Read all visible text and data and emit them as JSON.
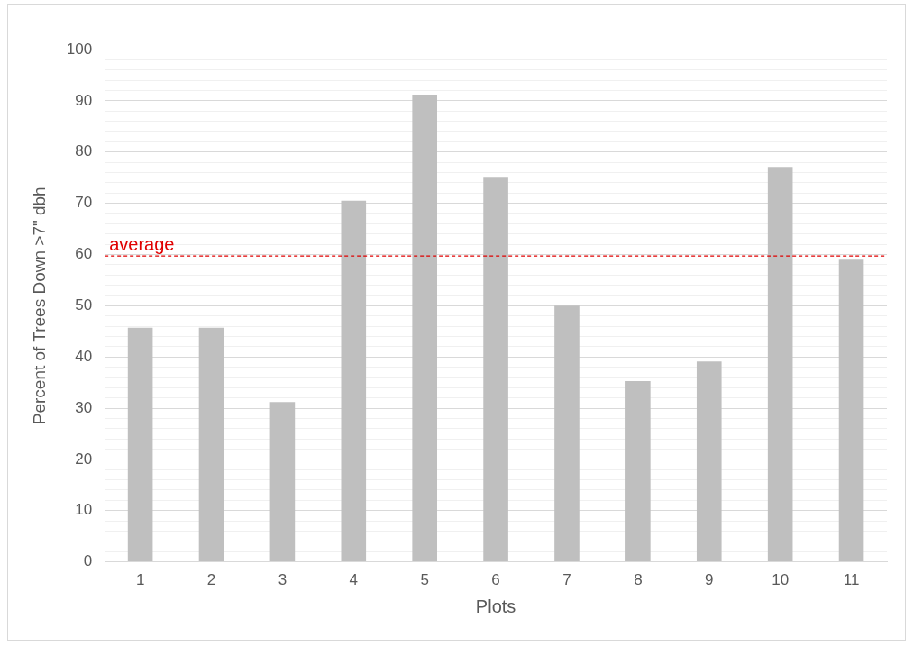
{
  "chart_data": {
    "type": "bar",
    "xlabel": "Plots",
    "ylabel": "Percent of Trees Down >7\" dbh",
    "categories": [
      "1",
      "2",
      "3",
      "4",
      "5",
      "6",
      "7",
      "8",
      "9",
      "10",
      "11"
    ],
    "values": [
      45.7,
      45.7,
      31.2,
      70.5,
      91.2,
      75,
      50,
      35.3,
      39.1,
      77.1,
      59
    ],
    "color": "#bfbfbf",
    "ylim": [
      0,
      100
    ],
    "yticks": [
      0,
      {
        "value": 2,
        "label": null
      },
      {
        "value": 4,
        "label": null
      },
      {
        "value": 6,
        "label": null
      },
      {
        "value": 8,
        "label": null
      },
      10,
      {
        "value": 12,
        "label": null
      },
      {
        "value": 14,
        "label": null
      },
      {
        "value": 16,
        "label": null
      },
      {
        "value": 18,
        "label": null
      },
      20,
      {
        "value": 22,
        "label": null
      },
      {
        "value": 24,
        "label": null
      },
      {
        "value": 26,
        "label": null
      },
      {
        "value": 28,
        "label": null
      },
      30,
      {
        "value": 32,
        "label": null
      },
      {
        "value": 34,
        "label": null
      },
      {
        "value": 36,
        "label": null
      },
      {
        "value": 38,
        "label": null
      },
      40,
      {
        "value": 42,
        "label": null
      },
      {
        "value": 44,
        "label": null
      },
      {
        "value": 46,
        "label": null
      },
      {
        "value": 48,
        "label": null
      },
      50,
      {
        "value": 52,
        "label": null
      },
      {
        "value": 54,
        "label": null
      },
      {
        "value": 56,
        "label": null
      },
      {
        "value": 58,
        "label": null
      },
      60,
      {
        "value": 62,
        "label": null
      },
      {
        "value": 64,
        "label": null
      },
      {
        "value": 66,
        "label": null
      },
      {
        "value": 68,
        "label": null
      },
      70,
      {
        "value": 72,
        "label": null
      },
      {
        "value": 74,
        "label": null
      },
      {
        "value": 76,
        "label": null
      },
      {
        "value": 78,
        "label": null
      },
      80,
      {
        "value": 82,
        "label": null
      },
      {
        "value": 84,
        "label": null
      },
      {
        "value": 86,
        "label": null
      },
      {
        "value": 88,
        "label": null
      },
      90,
      {
        "value": 92,
        "label": null
      },
      {
        "value": 94,
        "label": null
      },
      {
        "value": 96,
        "label": null
      },
      {
        "value": 98,
        "label": null
      },
      100
    ],
    "grid": "y",
    "ref_lines": [
      {
        "axis": "y",
        "value": 59.7,
        "label": "average",
        "color": "#e00000",
        "line_style": "dashed"
      }
    ]
  }
}
